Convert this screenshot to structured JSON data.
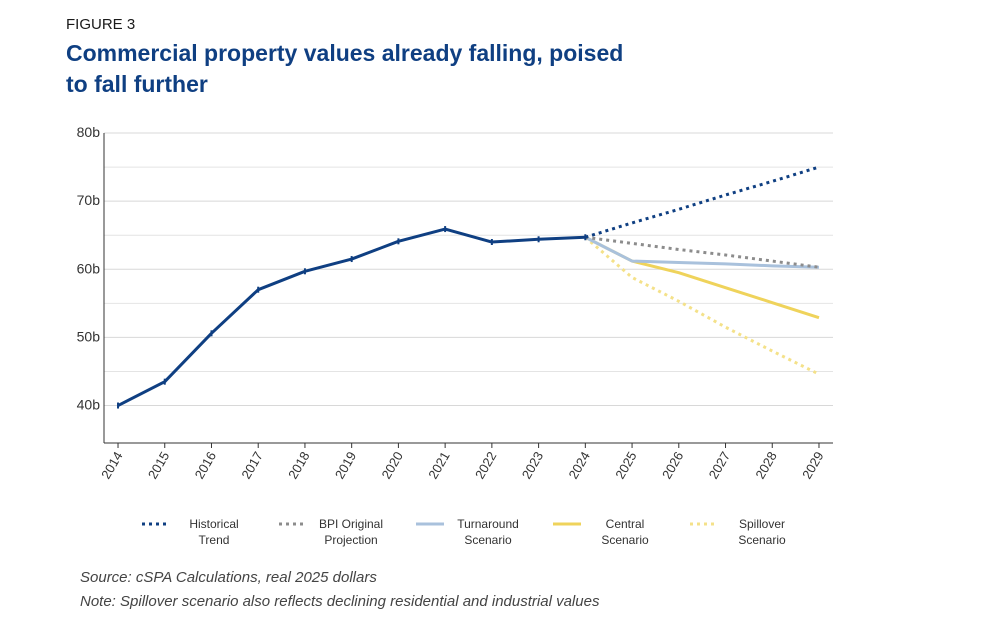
{
  "chart_data": {
    "type": "line",
    "figure_label": "FIGURE 3",
    "title": "Commercial property values already falling, poised to fall further",
    "x": [
      2014,
      2015,
      2016,
      2017,
      2018,
      2019,
      2020,
      2021,
      2022,
      2023,
      2024,
      2025,
      2026,
      2027,
      2028,
      2029
    ],
    "xlim": [
      2013.7,
      2029.3
    ],
    "ylim": [
      34.5,
      80
    ],
    "yticks": [
      {
        "value": 40,
        "label": "40b"
      },
      {
        "value": 50,
        "label": "50b"
      },
      {
        "value": 60,
        "label": "60b"
      },
      {
        "value": 70,
        "label": "70b"
      },
      {
        "value": 80,
        "label": "80b"
      }
    ],
    "yminor": [
      45,
      55,
      65,
      75
    ],
    "grid": true,
    "series": [
      {
        "color": "#0f3f82",
        "style": "solid",
        "values": [
          40,
          43.5,
          50.6,
          57,
          59.7,
          61.5,
          64.1,
          65.9,
          64,
          64.4,
          64.7,
          null,
          null,
          null,
          null,
          null
        ]
      },
      {
        "name": "Historical Trend",
        "color": "#0f3f82",
        "style": "dotted",
        "values": [
          null,
          null,
          null,
          null,
          null,
          null,
          null,
          null,
          null,
          null,
          64.7,
          66.8,
          68.8,
          70.9,
          72.9,
          75
        ]
      },
      {
        "name": "BPI Original Projection",
        "color": "#8c8c8c",
        "style": "dotted",
        "values": [
          null,
          null,
          null,
          null,
          null,
          null,
          null,
          null,
          null,
          null,
          64.7,
          63.8,
          62.9,
          62.1,
          61.2,
          60.3
        ]
      },
      {
        "name": "Turnaround Scenario",
        "color": "#a9c1dc",
        "style": "solid",
        "values": [
          null,
          null,
          null,
          null,
          null,
          null,
          null,
          null,
          null,
          null,
          64.7,
          61.2,
          61,
          60.8,
          60.5,
          60.3
        ]
      },
      {
        "name": "Central Scenario",
        "color": "#efd35b",
        "style": "solid",
        "values": [
          null,
          null,
          null,
          null,
          null,
          null,
          null,
          null,
          null,
          null,
          64.7,
          61.2,
          59.5,
          57.3,
          55.1,
          52.9
        ]
      },
      {
        "name": "Spillover Scenario",
        "color": "#f4e189",
        "style": "dotted",
        "values": [
          null,
          null,
          null,
          null,
          null,
          null,
          null,
          null,
          null,
          null,
          64.7,
          58.8,
          55.3,
          51.5,
          48,
          44.6
        ]
      }
    ],
    "source": "Source: cSPA Calculations, real 2025 dollars",
    "note": "Note: Spillover scenario also reflects declining residential and industrial values"
  }
}
